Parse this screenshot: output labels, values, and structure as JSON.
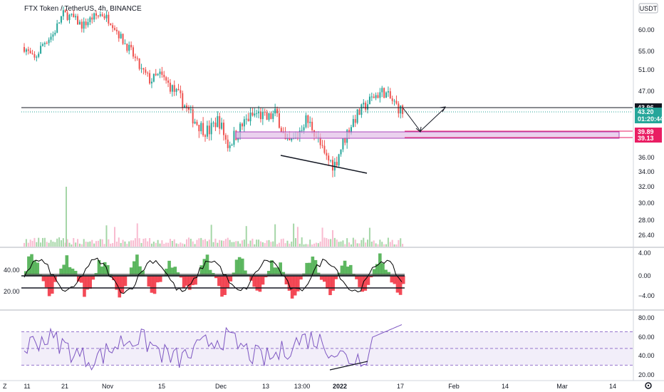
{
  "header": {
    "symbol_title": "FTX Token / TetherUS, 4h, BINANCE",
    "currency": "USDT"
  },
  "corner": {
    "left": "Z",
    "right_gear": "gear-icon",
    "brand": "tv-logo-icon"
  },
  "chart_data": [
    {
      "type": "candlestick",
      "title": "FTX Token / TetherUS, 4h, BINANCE",
      "y_ticks": [
        "60.00",
        "55.00",
        "51.00",
        "47.00",
        "43.96",
        "43.20",
        "39.89",
        "39.13",
        "36.00",
        "34.00",
        "32.00",
        "30.00",
        "28.00",
        "26.40"
      ],
      "price_scale_values": [
        60,
        55,
        51,
        47,
        36,
        34,
        32,
        30,
        28,
        26.4
      ],
      "ylim": [
        25.5,
        66
      ],
      "last_price": 43.2,
      "countdown": "01:20:44",
      "resistance_line": 43.96,
      "support_zone": [
        39.13,
        39.89
      ],
      "x_ticks": [
        "11",
        "21",
        "Nov",
        "15",
        "Dec",
        "13",
        "13:00",
        "2022",
        "17",
        "Feb",
        "14",
        "Mar",
        "14"
      ],
      "close_path_anchors": [
        56,
        53,
        57,
        59,
        64,
        63,
        61,
        63,
        64,
        62,
        58,
        55,
        51,
        49,
        50,
        48,
        46,
        43,
        41,
        40,
        42,
        38,
        40,
        42,
        43,
        42,
        43,
        38,
        39,
        42,
        40,
        36,
        35,
        39,
        42,
        44,
        46,
        47,
        45,
        43.2
      ],
      "colors": {
        "up": "#26a69a",
        "down": "#ef5350",
        "last_price": "#26a69a",
        "zone": "#e1bee7",
        "zone_border": "#ab47bc",
        "tag_red": "#e91e63"
      }
    },
    {
      "type": "area",
      "title": "",
      "y_ticks": [
        "4.00",
        "0.00",
        "−4.00"
      ],
      "left_labels": [
        "40.00",
        "20.00"
      ],
      "ylim": [
        -6,
        6
      ],
      "colors": {
        "positive": "#4caf50",
        "negative": "#f23645",
        "line": "#000000"
      }
    },
    {
      "type": "line",
      "title": "",
      "y_ticks": [
        "80.00",
        "60.00",
        "40.00",
        "20.00"
      ],
      "ylim": [
        15,
        90
      ],
      "bands": [
        30,
        50,
        70
      ],
      "colors": {
        "line": "#7e57c2",
        "band": "#ede7f6"
      }
    }
  ]
}
